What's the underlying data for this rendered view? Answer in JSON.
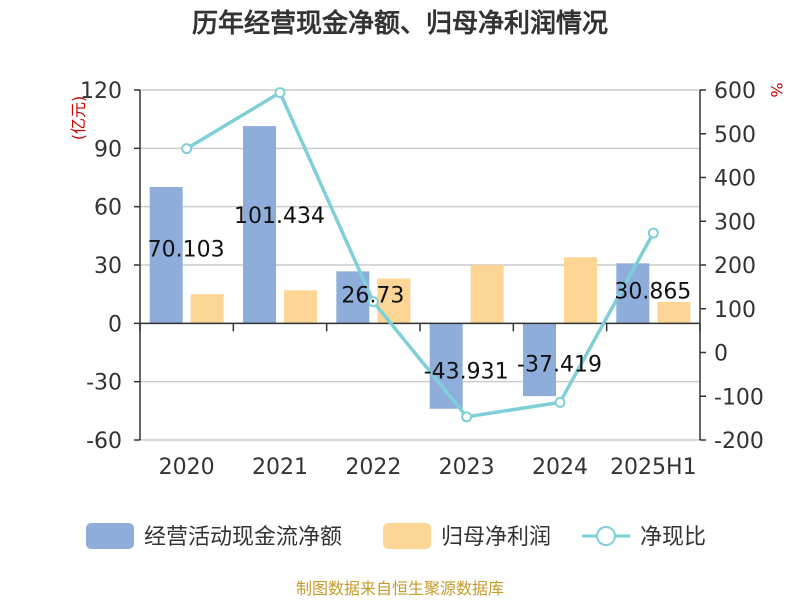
{
  "title": "历年经营现金净额、归母净利润情况",
  "source": "制图数据来自恒生聚源数据库",
  "colors": {
    "cash_flow": "#8eaddb",
    "net_profit": "#fdd594",
    "ratio": "#7fcfd8",
    "unit_text": "#cc0000",
    "source_text": "#c49a2c",
    "axis": "#333333",
    "grid": "#cccccc"
  },
  "chart_data": {
    "type": "bar",
    "title": "历年经营现金净额、归母净利润情况",
    "categories": [
      "2020",
      "2021",
      "2022",
      "2023",
      "2024",
      "2025H1"
    ],
    "left_axis": {
      "unit": "(亿元)",
      "ylim": [
        -60,
        120
      ],
      "ticks": [
        "120",
        "90",
        "60",
        "30",
        "0",
        "-30",
        "-60"
      ]
    },
    "right_axis": {
      "unit": "%",
      "ylim": [
        -200,
        600
      ],
      "ticks": [
        "600",
        "500",
        "400",
        "300",
        "200",
        "100",
        "0",
        "-100",
        "-200"
      ]
    },
    "grid": true,
    "legend_position": "bottom",
    "series": [
      {
        "name": "经营活动现金流净额",
        "kind": "bar",
        "axis": "left",
        "values": [
          70.103,
          101.434,
          26.73,
          -43.931,
          -37.419,
          30.865
        ],
        "labels": [
          "70.103",
          "101.434",
          "26.73",
          "-43.931",
          "-37.419",
          "30.865"
        ]
      },
      {
        "name": "归母净利润",
        "kind": "bar",
        "axis": "left",
        "values": [
          15,
          17,
          23,
          30,
          34,
          11
        ]
      },
      {
        "name": "净现比",
        "kind": "line",
        "axis": "right",
        "values": [
          466,
          594,
          116,
          -147,
          -114,
          273
        ]
      }
    ]
  }
}
